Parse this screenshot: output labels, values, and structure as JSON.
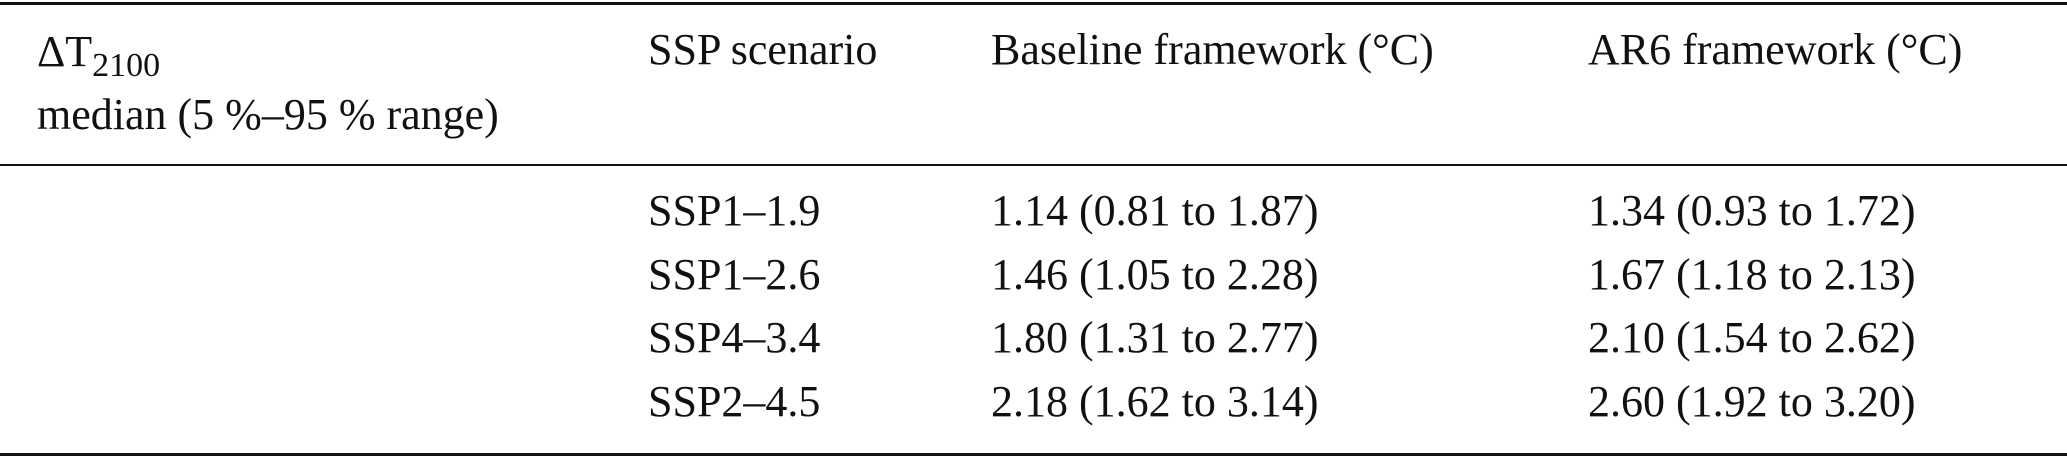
{
  "table": {
    "header": {
      "delta_symbol": "ΔT",
      "delta_subscript": "2100",
      "delta_line2": "median (5 %–95 % range)",
      "columns": [
        "SSP scenario",
        "Baseline framework (°C)",
        "AR6 framework (°C)"
      ]
    },
    "rows": [
      [
        "SSP1–1.9",
        "1.14 (0.81 to 1.87)",
        "1.34 (0.93 to 1.72)"
      ],
      [
        "SSP1–2.6",
        "1.46 (1.05 to 2.28)",
        "1.67 (1.18 to 2.13)"
      ],
      [
        "SSP4–3.4",
        "1.80 (1.31 to 2.77)",
        "2.10 (1.54 to 2.62)"
      ],
      [
        "SSP2–4.5",
        "2.18 (1.62 to 3.14)",
        "2.60 (1.92 to 3.20)"
      ]
    ]
  }
}
